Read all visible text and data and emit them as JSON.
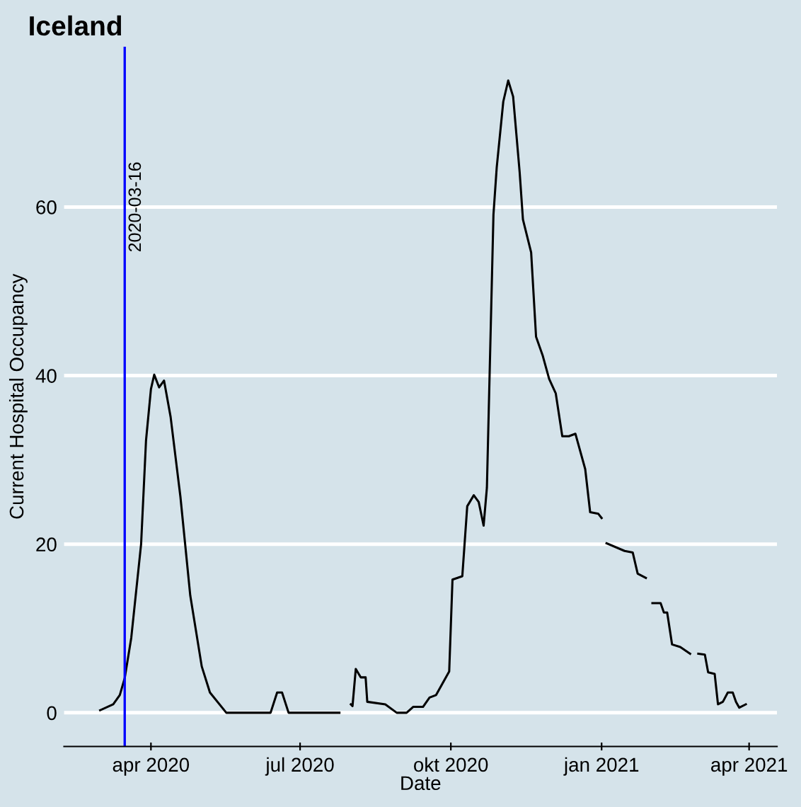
{
  "chart_data": {
    "type": "line",
    "title": "Iceland",
    "xlabel": "Date",
    "ylabel": "Current Hospital Occupancy",
    "x": [
      "2020-03-01",
      "2020-03-09",
      "2020-03-13",
      "2020-03-16",
      "2020-03-20",
      "2020-03-26",
      "2020-03-29",
      "2020-04-01",
      "2020-04-03",
      "2020-04-06",
      "2020-04-09",
      "2020-04-13",
      "2020-04-19",
      "2020-04-25",
      "2020-05-02",
      "2020-05-07",
      "2020-05-17",
      "2020-06-13",
      "2020-06-17",
      "2020-06-20",
      "2020-06-24",
      "2020-07-25",
      "2020-07-28",
      "2020-08-01",
      "2020-08-02",
      "2020-08-04",
      "2020-08-07",
      "2020-08-10",
      "2020-08-11",
      "2020-08-22",
      "2020-08-29",
      "2020-09-04",
      "2020-09-08",
      "2020-09-14",
      "2020-09-18",
      "2020-09-22",
      "2020-09-30",
      "2020-10-02",
      "2020-10-08",
      "2020-10-11",
      "2020-10-15",
      "2020-10-18",
      "2020-10-21",
      "2020-10-23",
      "2020-10-27",
      "2020-10-29",
      "2020-11-02",
      "2020-11-05",
      "2020-11-08",
      "2020-11-12",
      "2020-11-14",
      "2020-11-19",
      "2020-11-22",
      "2020-11-26",
      "2020-11-30",
      "2020-12-04",
      "2020-12-08",
      "2020-12-12",
      "2020-12-16",
      "2020-12-22",
      "2020-12-25",
      "2020-12-30",
      "2021-01-01",
      "2021-01-02",
      "2021-01-04",
      "2021-01-15",
      "2021-01-20",
      "2021-01-23",
      "2021-01-28",
      "2021-01-30",
      "2021-02-01",
      "2021-02-06",
      "2021-02-08",
      "2021-02-10",
      "2021-02-13",
      "2021-02-18",
      "2021-02-24",
      "2021-02-26",
      "2021-03-01",
      "2021-03-05",
      "2021-03-07",
      "2021-03-11",
      "2021-03-13",
      "2021-03-16",
      "2021-03-19",
      "2021-03-22",
      "2021-03-24",
      "2021-03-26",
      "2021-03-30"
    ],
    "series": [
      {
        "color": "#000000",
        "values": [
          0.3,
          1.0,
          2.1,
          4.1,
          8.9,
          20,
          32.3,
          38.4,
          40.1,
          38.6,
          39.4,
          35.1,
          25.6,
          13.9,
          5.5,
          2.4,
          0,
          0,
          2.4,
          2.4,
          0,
          0,
          null,
          1.0,
          0.8,
          5.2,
          4.2,
          4.2,
          1.3,
          1.0,
          0,
          0,
          0.7,
          0.7,
          1.8,
          2.1,
          4.9,
          15.8,
          16.2,
          24.5,
          25.8,
          25.0,
          22.2,
          26.7,
          59.1,
          64.7,
          72.5,
          75.0,
          73.1,
          64.1,
          58.5,
          54.6,
          44.6,
          42.4,
          39.6,
          37.9,
          32.8,
          32.8,
          33.1,
          28.9,
          23.8,
          23.6,
          23.1,
          null,
          20.1,
          19.2,
          19.0,
          16.5,
          16.0,
          null,
          13.0,
          13.0,
          11.9,
          11.9,
          8.1,
          7.8,
          7.0,
          null,
          7.0,
          6.9,
          4.8,
          4.6,
          1.0,
          1.3,
          2.4,
          2.4,
          1.3,
          0.6,
          1.0
        ]
      }
    ],
    "xlim": [
      "2020-02-08",
      "2021-04-18"
    ],
    "ylim": [
      -4,
      79
    ],
    "xticks": [
      {
        "value": "2020-04-01",
        "label": "apr 2020"
      },
      {
        "value": "2020-07-01",
        "label": "jul 2020"
      },
      {
        "value": "2020-10-01",
        "label": "okt 2020"
      },
      {
        "value": "2021-01-01",
        "label": "jan 2021"
      },
      {
        "value": "2021-04-01",
        "label": "apr 2021"
      }
    ],
    "yticks": [
      0,
      20,
      40,
      60
    ],
    "grid": "y",
    "legend": false,
    "marker": "none",
    "line_style": "solid",
    "ref_lines": [
      {
        "axis": "x",
        "value": "2020-03-16",
        "label": "2020-03-16",
        "color": "#0000ff"
      }
    ]
  }
}
